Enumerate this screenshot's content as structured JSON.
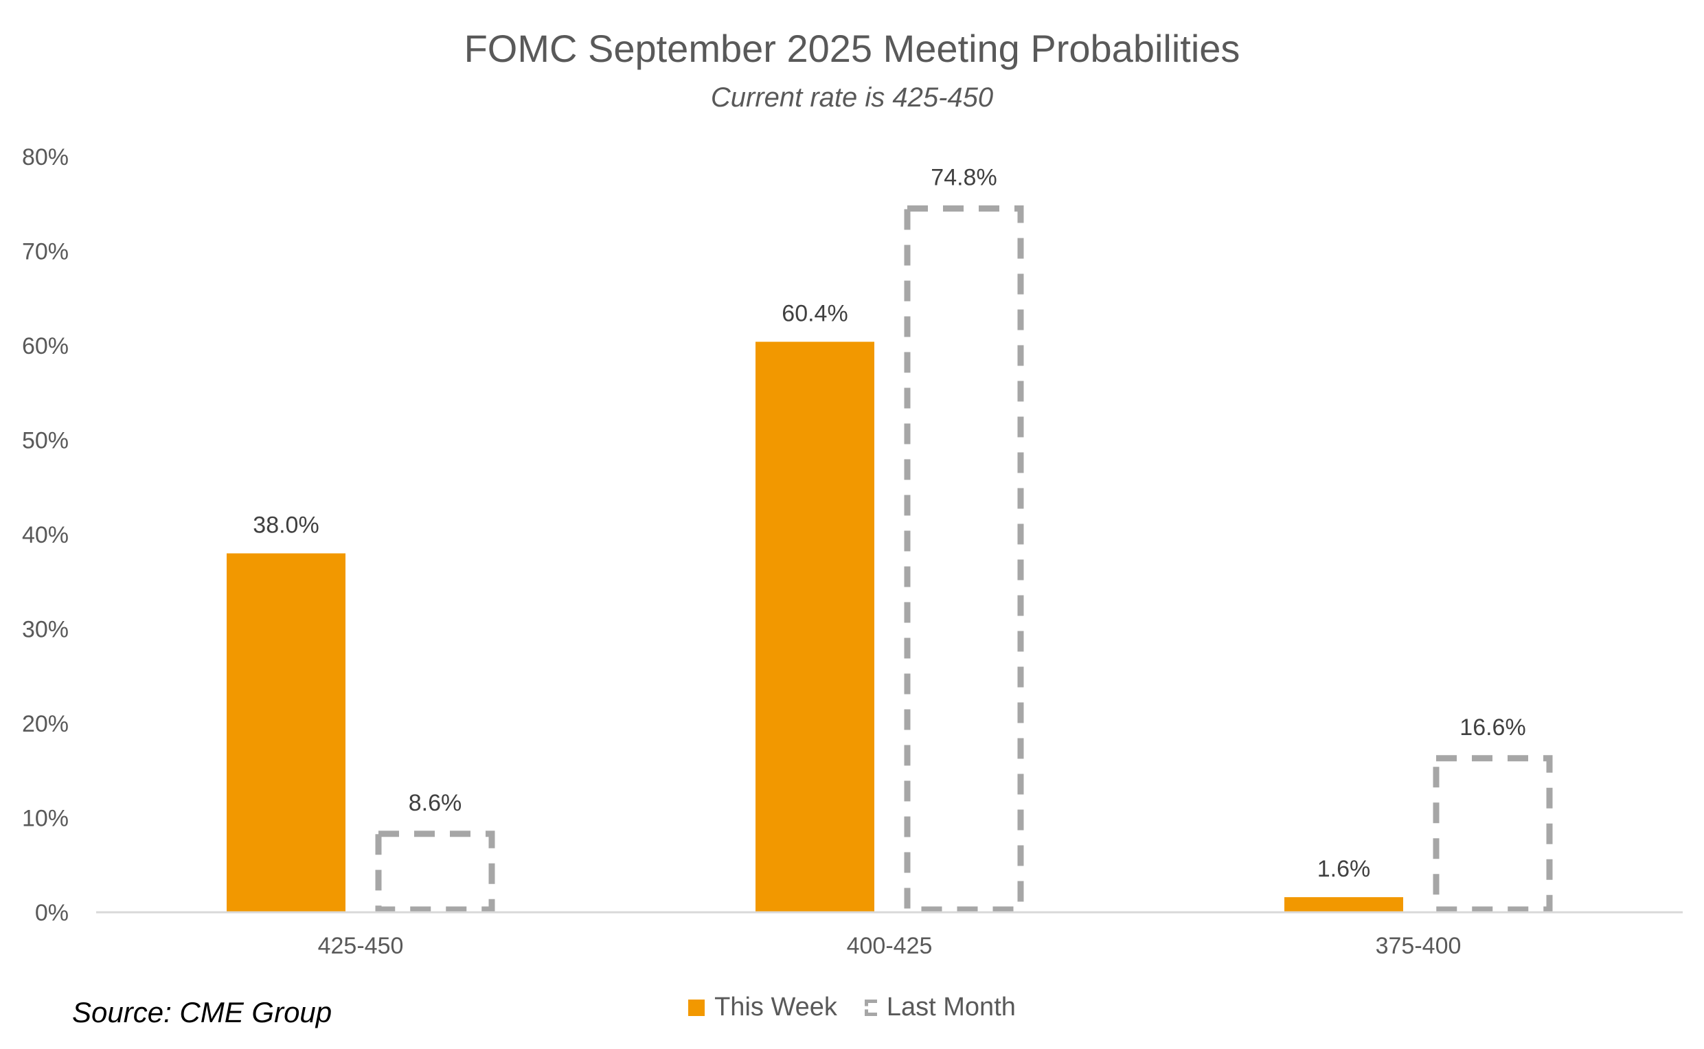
{
  "chart_data": {
    "type": "bar",
    "title": "FOMC September 2025 Meeting Probabilities",
    "subtitle": "Current rate is 425-450",
    "categories": [
      "425-450",
      "400-425",
      "375-400"
    ],
    "series": [
      {
        "name": "This Week",
        "values": [
          38.0,
          60.4,
          1.6
        ],
        "labels": [
          "38.0%",
          "60.4%",
          "1.6%"
        ],
        "color": "#F29800",
        "style": "solid"
      },
      {
        "name": "Last Month",
        "values": [
          8.6,
          74.8,
          16.6
        ],
        "labels": [
          "8.6%",
          "74.8%",
          "16.6%"
        ],
        "color": "#A6A6A6",
        "style": "dashed"
      }
    ],
    "ylim": [
      0,
      80
    ],
    "yticks": [
      0,
      10,
      20,
      30,
      40,
      50,
      60,
      70,
      80
    ],
    "ytick_labels": [
      "0%",
      "10%",
      "20%",
      "30%",
      "40%",
      "50%",
      "60%",
      "70%",
      "80%"
    ],
    "xlabel": "",
    "ylabel": "",
    "grid": false,
    "legend_position": "bottom"
  },
  "source": "Source: CME Group"
}
